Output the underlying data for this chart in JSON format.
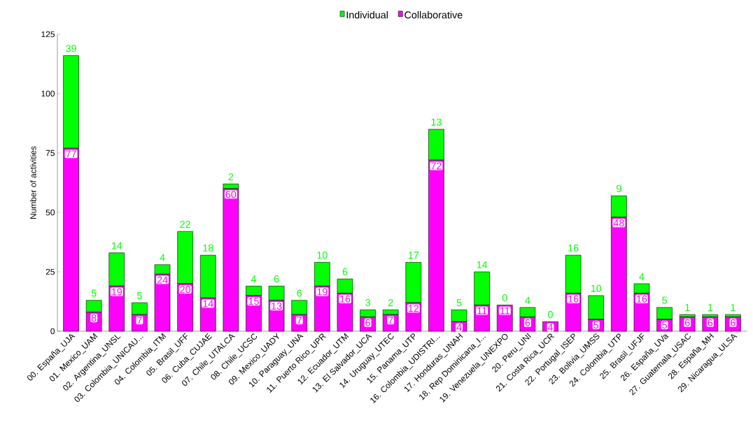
{
  "chart_data": {
    "type": "bar",
    "stacked": true,
    "ylabel": "Number of activities",
    "categories": [
      "00. España_UJA",
      "01. Mexico_UAM",
      "02. Argentina_UNSL",
      "03. Colombia_UNICAU...",
      "04. Colombia_ITM",
      "05. Brasil_UFF",
      "06. Cuba_CUJAE",
      "07. Chile_UTALCA",
      "08. Chile_UCSC",
      "09. Mexico_UADY",
      "10. Paraguay_UNA",
      "11. Puerto Rico_UPR",
      "12. Ecuador_UTM",
      "13. El Salvador_UCA",
      "14. Uruguay_UTEC",
      "15. Panama_UTP",
      "16. Colombia_UDISTRI...",
      "17. Honduras_UNAH",
      "18. Rep Dominicana_I...",
      "19. Venezuela_UNEXPO",
      "20. Peru_UNI",
      "21. Costa Rica_UCR",
      "22. Portugal_ISEP",
      "23. Bolivia_UMSS",
      "24. Colombia_UTP",
      "25. Brasil_UFJF",
      "26. España_UVa",
      "27. Guatemala_USAC",
      "28. España_MH",
      "29. Nicaragua_ULSA"
    ],
    "series": [
      {
        "name": "Collaborative",
        "color": "#ff00ff",
        "values": [
          77,
          8,
          19,
          7,
          24,
          20,
          14,
          60,
          15,
          13,
          7,
          19,
          16,
          6,
          7,
          12,
          72,
          4,
          11,
          11,
          6,
          4,
          16,
          5,
          48,
          16,
          5,
          6,
          6,
          6
        ]
      },
      {
        "name": "Individual",
        "color": "#00ff00",
        "values": [
          39,
          5,
          14,
          5,
          4,
          22,
          18,
          2,
          4,
          6,
          6,
          10,
          6,
          3,
          2,
          17,
          13,
          5,
          14,
          0,
          4,
          0,
          16,
          10,
          9,
          4,
          5,
          1,
          1,
          1
        ]
      }
    ],
    "ylim": [
      0,
      125
    ],
    "yticks": [
      0,
      25,
      50,
      75,
      100,
      125
    ],
    "data_labels": true,
    "legend": "top",
    "grid": false
  }
}
